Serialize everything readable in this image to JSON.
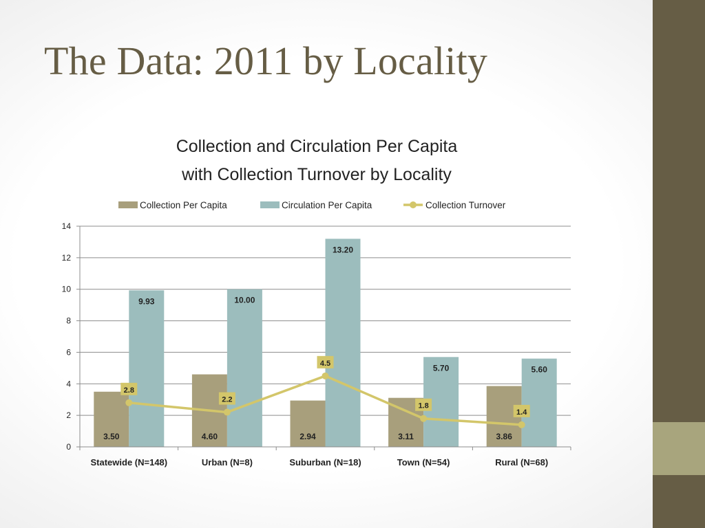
{
  "slide": {
    "title": "The Data: 2011 by Locality"
  },
  "colors": {
    "side_bar": "#665d45",
    "side_accent": "#a8a57d",
    "title_text": "#665d45",
    "collection": "#a89f7c",
    "circulation": "#9cbdbd",
    "turnover": "#d3c66a"
  },
  "chart_data": {
    "type": "bar",
    "title_lines": [
      "Collection and Circulation Per Capita",
      "with Collection Turnover by Locality"
    ],
    "categories": [
      "Statewide (N=148)",
      "Urban (N=8)",
      "Suburban (N=18)",
      "Town (N=54)",
      "Rural (N=68)"
    ],
    "series": [
      {
        "name": "Collection Per Capita",
        "type": "bar",
        "values": [
          3.5,
          4.6,
          2.94,
          3.11,
          3.86
        ],
        "labels": [
          "3.50",
          "4.60",
          "2.94",
          "3.11",
          "3.86"
        ]
      },
      {
        "name": "Circulation Per Capita",
        "type": "bar",
        "values": [
          9.93,
          10.0,
          13.2,
          5.7,
          5.6
        ],
        "labels": [
          "9.93",
          "10.00",
          "13.20",
          "5.70",
          "5.60"
        ]
      },
      {
        "name": "Collection Turnover",
        "type": "line",
        "values": [
          2.8,
          2.2,
          4.5,
          1.8,
          1.4
        ],
        "labels": [
          "2.8",
          "2.2",
          "4.5",
          "1.8",
          "1.4"
        ]
      }
    ],
    "ylim": [
      0,
      14
    ],
    "yticks": [
      0,
      2,
      4,
      6,
      8,
      10,
      12,
      14
    ],
    "grid": true,
    "legend": "top"
  }
}
